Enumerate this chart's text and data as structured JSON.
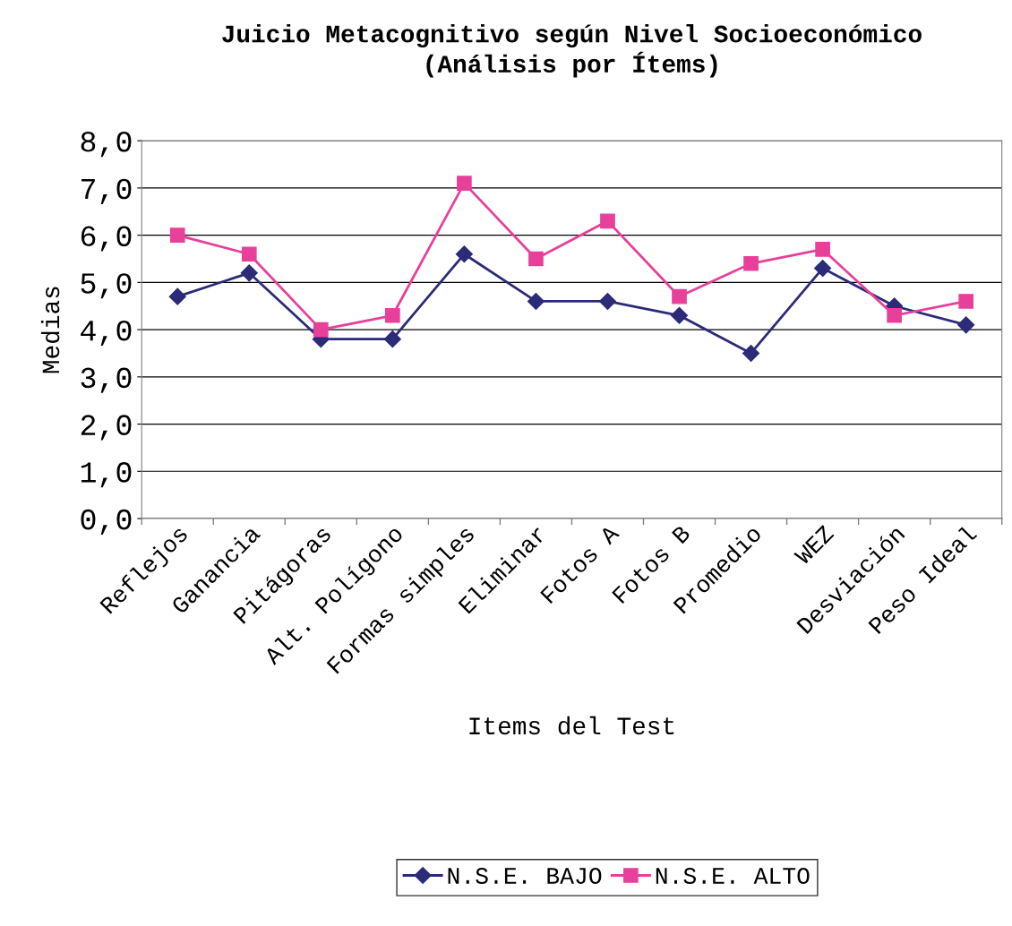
{
  "chart_data": {
    "type": "line",
    "title": "Juicio Metacognitivo según Nivel Socioeconómico\n(Análisis por Ítems)",
    "xlabel": "Items del Test",
    "ylabel": "Medias",
    "categories": [
      "Reflejos",
      "Ganancia",
      "Pitágoras",
      "Alt. Polígono",
      "Formas simples",
      "Eliminar",
      "Fotos A",
      "Fotos B",
      "Promedio",
      "WEZ",
      "Desviación",
      "Peso Ideal"
    ],
    "series": [
      {
        "name": "N.S.E. BAJO",
        "color": "#2b2b78",
        "marker": "diamond",
        "values": [
          4.7,
          5.2,
          3.8,
          3.8,
          5.6,
          4.6,
          4.6,
          4.3,
          3.5,
          5.3,
          4.5,
          4.1
        ]
      },
      {
        "name": "N.S.E. ALTO",
        "color": "#e8409a",
        "marker": "square",
        "values": [
          6.0,
          5.6,
          4.0,
          4.3,
          7.1,
          5.5,
          6.3,
          4.7,
          5.4,
          5.7,
          4.3,
          4.6
        ]
      }
    ],
    "ylim": [
      0,
      8
    ],
    "yticks": [
      {
        "value": 0,
        "label": "0,0"
      },
      {
        "value": 1,
        "label": "1,0"
      },
      {
        "value": 2,
        "label": "2,0"
      },
      {
        "value": 3,
        "label": "3,0"
      },
      {
        "value": 4,
        "label": "4,0"
      },
      {
        "value": 5,
        "label": "5,0"
      },
      {
        "value": 6,
        "label": "6,0"
      },
      {
        "value": 7,
        "label": "7,0"
      },
      {
        "value": 8,
        "label": "8,0"
      }
    ],
    "grid": "y",
    "legend": "bottom",
    "line_style": "solid"
  }
}
